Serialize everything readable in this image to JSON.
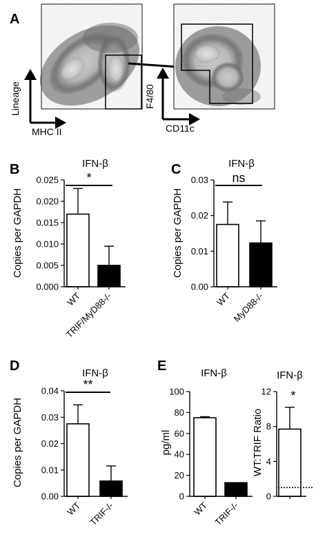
{
  "panels": {
    "A": "A",
    "B": "B",
    "C": "C",
    "D": "D",
    "E": "E"
  },
  "flow": {
    "plot1": {
      "ylabel": "Lineage",
      "xlabel": "MHC II"
    },
    "plot2": {
      "ylabel": "F4/80",
      "xlabel": "CD11c"
    }
  },
  "chart_data": [
    {
      "id": "B",
      "type": "bar",
      "title": "IFN-β",
      "ylabel": "Copies per GAPDH",
      "xlabel": "",
      "categories": [
        "WT",
        "TRIF/MyD88-/-"
      ],
      "values": [
        0.017,
        0.005
      ],
      "errors": [
        0.006,
        0.0045
      ],
      "fills": [
        "#ffffff",
        "#000000"
      ],
      "ylim": [
        0,
        0.025
      ],
      "yticks": [
        0,
        0.005,
        0.01,
        0.015,
        0.02,
        0.025
      ],
      "ytick_labels": [
        "0.000",
        "0.005",
        "0.010",
        "0.015",
        "0.020",
        "0.025"
      ],
      "significance": "*"
    },
    {
      "id": "C",
      "type": "bar",
      "title": "IFN-β",
      "ylabel": "Copies per GAPDH",
      "xlabel": "",
      "categories": [
        "WT",
        "MyD88-/-"
      ],
      "values": [
        0.0175,
        0.0123
      ],
      "errors": [
        0.0063,
        0.0062
      ],
      "fills": [
        "#ffffff",
        "#000000"
      ],
      "ylim": [
        0,
        0.03
      ],
      "yticks": [
        0,
        0.01,
        0.02,
        0.03
      ],
      "ytick_labels": [
        "0.00",
        "0.01",
        "0.02",
        "0.03"
      ],
      "significance": "ns"
    },
    {
      "id": "D",
      "type": "bar",
      "title": "IFN-β",
      "ylabel": "Copies per GAPDH",
      "xlabel": "",
      "categories": [
        "WT",
        "TRIF-/-"
      ],
      "values": [
        0.0275,
        0.0058
      ],
      "errors": [
        0.0072,
        0.0057
      ],
      "fills": [
        "#ffffff",
        "#000000"
      ],
      "ylim": [
        0,
        0.04
      ],
      "yticks": [
        0,
        0.01,
        0.02,
        0.03,
        0.04
      ],
      "ytick_labels": [
        "0.00",
        "0.01",
        "0.02",
        "0.03",
        "0.04"
      ],
      "significance": "**"
    },
    {
      "id": "E1",
      "type": "bar",
      "title": "IFN-β",
      "ylabel": "pg/ml",
      "xlabel": "",
      "categories": [
        "WT",
        "TRIF-/-"
      ],
      "values": [
        75,
        13
      ],
      "errors": [
        1,
        0
      ],
      "fills": [
        "#ffffff",
        "#000000"
      ],
      "ylim": [
        0,
        100
      ],
      "yticks": [
        0,
        20,
        40,
        60,
        80,
        100
      ],
      "ytick_labels": [
        "0",
        "20",
        "40",
        "60",
        "80",
        "100"
      ],
      "significance": ""
    },
    {
      "id": "E2",
      "type": "bar",
      "title": "IFN-β",
      "ylabel": "WT:TRIF Ratio",
      "xlabel": "",
      "categories": [
        ""
      ],
      "values": [
        7.7
      ],
      "errors": [
        2.5
      ],
      "fills": [
        "#ffffff"
      ],
      "ylim": [
        0,
        12
      ],
      "yticks": [
        0,
        4,
        8,
        12
      ],
      "ytick_labels": [
        "0",
        "4",
        "8",
        "12"
      ],
      "reference_line": 1,
      "significance": "*"
    }
  ]
}
